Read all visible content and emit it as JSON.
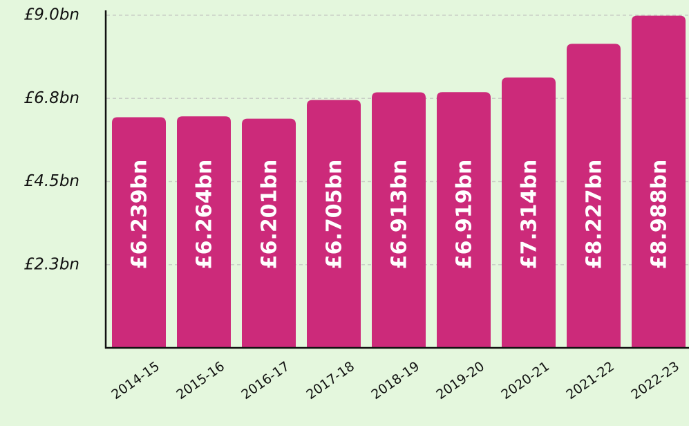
{
  "chart_data": {
    "type": "bar",
    "categories": [
      "2014-15",
      "2015-16",
      "2016-17",
      "2017-18",
      "2018-19",
      "2019-20",
      "2020-21",
      "2021-22",
      "2022-23"
    ],
    "values": [
      6.239,
      6.264,
      6.201,
      6.705,
      6.913,
      6.919,
      7.314,
      8.227,
      8.988
    ],
    "value_labels": [
      "£6.239bn",
      "£6.264bn",
      "£6.201bn",
      "£6.705bn",
      "£6.913bn",
      "£6.919bn",
      "£7.314bn",
      "£8.227bn",
      "£8.988bn"
    ],
    "color": "#cc2a7a",
    "ylim": [
      0,
      9
    ],
    "yticks": [
      {
        "value": 2.25,
        "label": "£2.3bn"
      },
      {
        "value": 4.5,
        "label": "£4.5bn"
      },
      {
        "value": 6.75,
        "label": "£6.8bn"
      },
      {
        "value": 9.0,
        "label": "£9.0bn"
      }
    ],
    "grid": true
  }
}
